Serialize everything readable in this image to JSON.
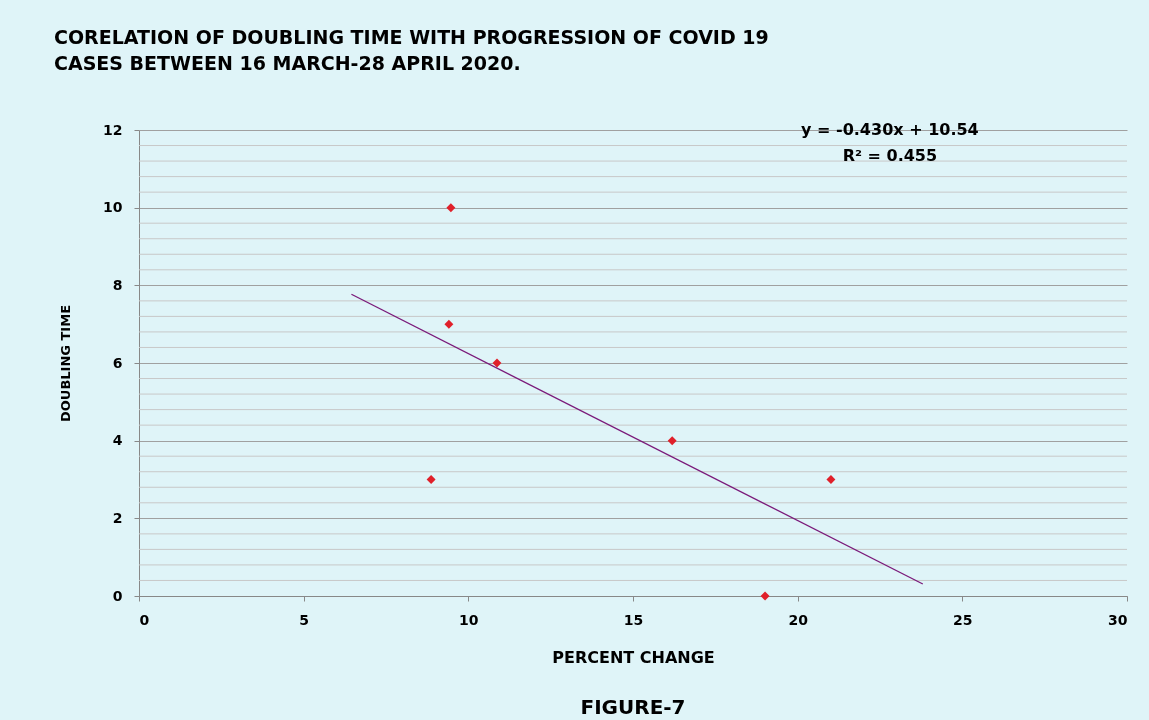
{
  "chart_data": {
    "type": "scatter",
    "title": "CORELATION OF DOUBLING TIME WITH PROGRESSION OF COVID 19 CASES BETWEEN 16 MARCH-28 APRIL 2020.",
    "xlabel": "PERCENT CHANGE",
    "ylabel": "DOUBLING TIME",
    "annotations": [
      "y = -0.430x + 10.54",
      "R² = 0.455",
      "FIGURE-7"
    ],
    "series": [
      {
        "color": "#e0202a",
        "x": [
          9.47,
          9.41,
          10.87,
          16.19,
          8.87,
          21.01,
          19.01
        ],
        "values": [
          10,
          7,
          6,
          4,
          3,
          3,
          0
        ],
        "marker": "diamond"
      },
      {
        "type": "line",
        "color": "#7a1a7a",
        "x": [
          6.45,
          23.8
        ],
        "values": [
          7.77,
          0.31
        ],
        "marker": "none"
      }
    ],
    "xlim": [
      0,
      30
    ],
    "xticks": [
      0,
      5,
      10,
      15,
      20,
      25,
      30
    ],
    "ylim": [
      0,
      12
    ],
    "yticks": [
      0,
      2,
      4,
      6,
      8,
      10,
      12
    ],
    "grid": "y"
  }
}
